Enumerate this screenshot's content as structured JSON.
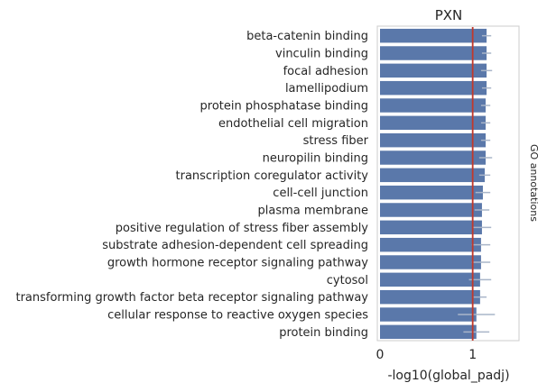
{
  "chart_data": {
    "type": "bar",
    "orientation": "horizontal",
    "title": "PXN",
    "xlabel": "-log10(global_padj)",
    "side_label": "GO annotations",
    "xlim": [
      0,
      1.5
    ],
    "xticks": [
      0,
      1
    ],
    "reference_line": 1.0,
    "colors": {
      "bar": "#5a78aa",
      "errorbar": "#a9b5c9",
      "refline": "#c0392b",
      "frame": "#cccccc"
    },
    "categories": [
      "beta-catenin binding",
      "vinculin binding",
      "focal adhesion",
      "lamellipodium",
      "protein phosphatase binding",
      "endothelial cell migration",
      "stress fiber",
      "neuropilin binding",
      "transcription coregulator activity",
      "cell-cell junction",
      "plasma membrane",
      "positive regulation of stress fiber assembly",
      "substrate adhesion-dependent cell spreading",
      "growth hormone receptor signaling pathway",
      "cytosol",
      "transforming growth factor beta receptor signaling pathway",
      "cellular response to reactive oxygen species",
      "protein binding"
    ],
    "values": [
      1.15,
      1.15,
      1.15,
      1.15,
      1.14,
      1.14,
      1.14,
      1.14,
      1.13,
      1.11,
      1.1,
      1.1,
      1.09,
      1.09,
      1.08,
      1.08,
      1.04,
      1.04
    ],
    "errors": [
      0.05,
      0.05,
      0.06,
      0.05,
      0.05,
      0.05,
      0.05,
      0.07,
      0.06,
      0.08,
      0.08,
      0.1,
      0.1,
      0.1,
      0.12,
      0.07,
      0.2,
      0.14
    ]
  }
}
